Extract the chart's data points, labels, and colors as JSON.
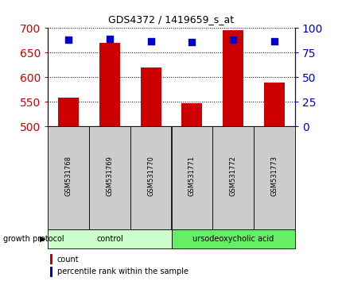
{
  "title": "GDS4372 / 1419659_s_at",
  "samples": [
    "GSM531768",
    "GSM531769",
    "GSM531770",
    "GSM531771",
    "GSM531772",
    "GSM531773"
  ],
  "counts": [
    558,
    670,
    620,
    547,
    695,
    590
  ],
  "percentile_ranks": [
    88,
    89,
    87,
    86,
    88,
    87
  ],
  "ylim_left": [
    500,
    700
  ],
  "ylim_right": [
    0,
    100
  ],
  "yticks_left": [
    500,
    550,
    600,
    650,
    700
  ],
  "yticks_right": [
    0,
    25,
    50,
    75,
    100
  ],
  "bar_color": "#cc0000",
  "dot_color": "#0000cc",
  "group_labels": [
    "control",
    "ursodeoxycholic acid"
  ],
  "group_ranges": [
    [
      0,
      3
    ],
    [
      3,
      6
    ]
  ],
  "group_colors_light": [
    "#ccffcc",
    "#66ee66"
  ],
  "protocol_label": "growth protocol",
  "legend_items": [
    "count",
    "percentile rank within the sample"
  ],
  "left_axis_color": "#cc0000",
  "right_axis_color": "#0000cc",
  "bar_width": 0.5,
  "dot_size": 40,
  "sample_box_color": "#cccccc",
  "fig_width": 4.31,
  "fig_height": 3.54,
  "dpi": 100
}
